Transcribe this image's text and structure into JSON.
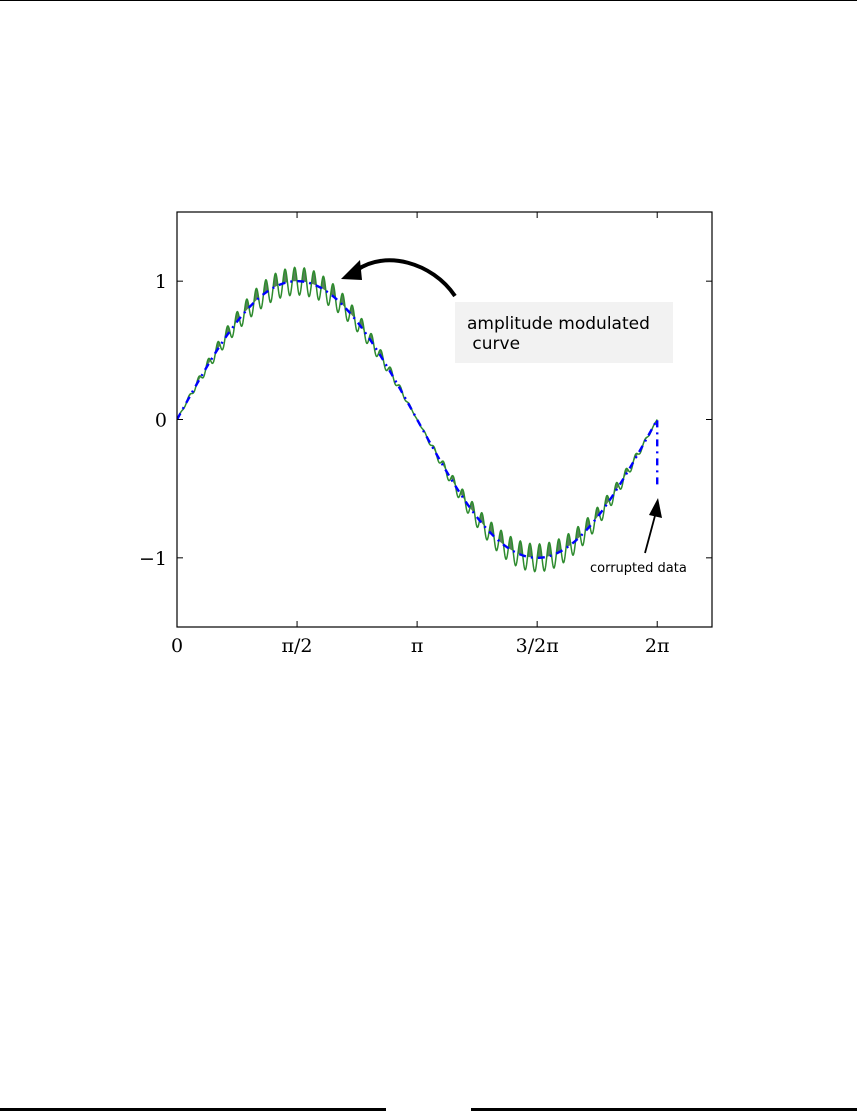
{
  "chart_data": {
    "type": "line",
    "title": "",
    "xlabel": "",
    "ylabel": "",
    "xlim": [
      0,
      7.0
    ],
    "ylim": [
      -1.5,
      1.5
    ],
    "x_ticks": [
      {
        "value": 0,
        "label": "0"
      },
      {
        "value": 1.5708,
        "label": "π/2"
      },
      {
        "value": 3.1416,
        "label": "π"
      },
      {
        "value": 4.7124,
        "label": "3/2π"
      },
      {
        "value": 6.2832,
        "label": "2π"
      }
    ],
    "y_ticks": [
      {
        "value": -1,
        "label": "−1"
      },
      {
        "value": 0,
        "label": "0"
      },
      {
        "value": 1,
        "label": "1"
      }
    ],
    "grid": false,
    "series": [
      {
        "style": "dash-dot",
        "color": "#0000ff",
        "function": "sin(x)",
        "x_range": [
          0,
          6.2832
        ],
        "corrupted_end_value": -0.5
      },
      {
        "style": "solid",
        "color": "#2e8b2e",
        "function": "sin(x) * (1 + 0.1*sin(50x))",
        "x_range": [
          0,
          6.2832
        ]
      }
    ],
    "fill_between": {
      "color": "#3d6b3d",
      "where": "amplitude-modulated curve above sin(x)"
    },
    "annotations": [
      {
        "text_lines": [
          "amplitude modulated",
          " curve"
        ],
        "box": true,
        "box_color": "#f2f2f2"
      },
      {
        "text_lines": [
          "corrupted data"
        ],
        "box": false
      }
    ]
  }
}
